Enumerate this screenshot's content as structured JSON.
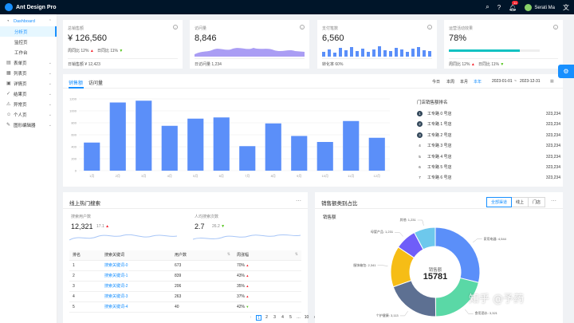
{
  "app": {
    "title": "Ant Design Pro",
    "user": "Serati Ma",
    "notif_count": "11"
  },
  "sidebar": {
    "items": [
      {
        "label": "Dashboard",
        "icon": "dashboard-icon"
      },
      {
        "label": "分析页"
      },
      {
        "label": "监控页"
      },
      {
        "label": "工作台"
      },
      {
        "label": "表单页",
        "icon": "form-icon"
      },
      {
        "label": "列表页",
        "icon": "table-icon"
      },
      {
        "label": "详情页",
        "icon": "profile-icon"
      },
      {
        "label": "结果页",
        "icon": "check-circle-icon"
      },
      {
        "label": "异常页",
        "icon": "warning-icon"
      },
      {
        "label": "个人页",
        "icon": "user-icon"
      },
      {
        "label": "图形编辑器",
        "icon": "highlight-icon"
      }
    ]
  },
  "kpi": {
    "sales": {
      "title": "总销售额",
      "value": "¥ 126,560",
      "wow_label": "周同比",
      "wow": "12%",
      "dod_label": "日同比",
      "dod": "11%",
      "foot_label": "日销售额",
      "foot_value": "¥ 12,423"
    },
    "visits": {
      "title": "访问量",
      "value": "8,846",
      "foot_label": "日访问量",
      "foot_value": "1,234"
    },
    "payments": {
      "title": "支付笔数",
      "value": "6,560",
      "foot_label": "转化率",
      "foot_value": "60%"
    },
    "ops": {
      "title": "运营活动效果",
      "value": "78%",
      "progress": 0.78,
      "wow_label": "周同比",
      "wow": "12%",
      "dod_label": "日同比",
      "dod": "11%"
    }
  },
  "sales_panel": {
    "tabs": [
      "销售额",
      "访问量"
    ],
    "ranges": [
      "今日",
      "本周",
      "本月",
      "本年"
    ],
    "date_start": "2023-01-01",
    "date_sep": "~",
    "date_end": "2023-12-31",
    "ranking_title": "门店销售额排名",
    "ranking": [
      {
        "rank": "1",
        "name": "工专路 0 号店",
        "value": "323,234"
      },
      {
        "rank": "2",
        "name": "工专路 1 号店",
        "value": "323,234"
      },
      {
        "rank": "3",
        "name": "工专路 2 号店",
        "value": "323,234"
      },
      {
        "rank": "4",
        "name": "工专路 3 号店",
        "value": "323,234"
      },
      {
        "rank": "5",
        "name": "工专路 4 号店",
        "value": "323,234"
      },
      {
        "rank": "6",
        "name": "工专路 5 号店",
        "value": "323,234"
      },
      {
        "rank": "7",
        "name": "工专路 6 号店",
        "value": "323,234"
      }
    ]
  },
  "chart_data": [
    {
      "type": "bar",
      "categories": [
        "1月",
        "2月",
        "3月",
        "4月",
        "5月",
        "6月",
        "7月",
        "8月",
        "9月",
        "10月",
        "11月",
        "12月"
      ],
      "values": [
        470,
        1140,
        1170,
        750,
        870,
        890,
        410,
        790,
        580,
        480,
        830,
        550
      ],
      "ylim": [
        0,
        1200
      ],
      "yticks": [
        "0",
        "200",
        "400",
        "600",
        "800",
        "1000",
        "1200"
      ],
      "grid": true,
      "color": "#5b8ff9"
    },
    {
      "type": "pie",
      "title": "销售额",
      "center_label": "销售额",
      "center_value": "15781",
      "slices": [
        {
          "name": "家用电器",
          "value": 4544,
          "color": "#5b8ff9"
        },
        {
          "name": "食用酒水",
          "value": 3321,
          "color": "#5ad8a6"
        },
        {
          "name": "个护健康",
          "value": 3113,
          "color": "#5d7092"
        },
        {
          "name": "服饰箱包",
          "value": 2341,
          "color": "#f6bd16"
        },
        {
          "name": "母婴产品",
          "value": 1231,
          "color": "#6f5ef9"
        },
        {
          "name": "其他",
          "value": 1231,
          "color": "#6dc8ec"
        }
      ]
    }
  ],
  "search_panel": {
    "title": "线上热门搜索",
    "users_label": "搜索用户数",
    "users_value": "12,321",
    "users_change": "17.1",
    "per_label": "人均搜索次数",
    "per_value": "2.7",
    "per_change": "26.2",
    "columns": [
      "排名",
      "搜索关键词",
      "用户数",
      "周涨幅"
    ],
    "rows": [
      {
        "rank": "1",
        "keyword": "搜索关键词-0",
        "users": "673",
        "change": "70%",
        "dir": "up"
      },
      {
        "rank": "2",
        "keyword": "搜索关键词-1",
        "users": "839",
        "change": "43%",
        "dir": "up"
      },
      {
        "rank": "3",
        "keyword": "搜索关键词-2",
        "users": "206",
        "change": "35%",
        "dir": "up"
      },
      {
        "rank": "4",
        "keyword": "搜索关键词-3",
        "users": "263",
        "change": "37%",
        "dir": "up"
      },
      {
        "rank": "5",
        "keyword": "搜索关键词-4",
        "users": "40",
        "change": "42%",
        "dir": "down"
      }
    ],
    "pages": [
      "1",
      "2",
      "3",
      "4",
      "5",
      "…",
      "10"
    ]
  },
  "category_panel": {
    "title": "销售额类别占比",
    "filters": [
      "全部渠道",
      "线上",
      "门店"
    ],
    "subtitle": "销售额"
  },
  "watermark": "知乎 @予药",
  "colors": {
    "primary": "#1890ff",
    "up": "#f5222d",
    "down": "#52c41a"
  }
}
